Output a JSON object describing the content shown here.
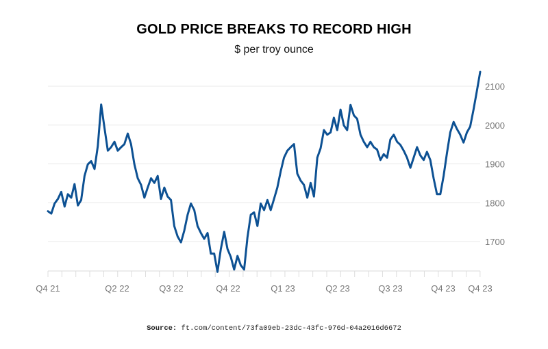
{
  "chart_data": {
    "type": "line",
    "title": "GOLD PRICE BREAKS TO RECORD HIGH",
    "subtitle": "$ per troy ounce",
    "xlabel": "",
    "ylabel": "",
    "x_tick_labels": [
      "Q4 21",
      "Q2 22",
      "Q3 22",
      "Q4 22",
      "Q1 23",
      "Q2 23",
      "Q3 23",
      "Q4 23",
      "Q4 23"
    ],
    "y_ticks": [
      1700,
      1800,
      1900,
      2000,
      2100
    ],
    "ylim": [
      1622,
      2140
    ],
    "grid": "horizontal",
    "legend": "none",
    "line_color": "#0d5193",
    "series": [
      {
        "values": [
          1778,
          1772,
          1798,
          1810,
          1828,
          1790,
          1822,
          1813,
          1848,
          1793,
          1807,
          1869,
          1899,
          1907,
          1887,
          1946,
          2053,
          1993,
          1934,
          1943,
          1957,
          1934,
          1943,
          1951,
          1978,
          1951,
          1899,
          1863,
          1846,
          1813,
          1839,
          1863,
          1851,
          1869,
          1810,
          1839,
          1816,
          1807,
          1740,
          1713,
          1698,
          1728,
          1769,
          1798,
          1781,
          1740,
          1722,
          1707,
          1722,
          1669,
          1669,
          1622,
          1681,
          1725,
          1681,
          1660,
          1628,
          1663,
          1639,
          1628,
          1710,
          1769,
          1775,
          1740,
          1798,
          1781,
          1807,
          1781,
          1810,
          1839,
          1881,
          1916,
          1934,
          1943,
          1951,
          1875,
          1857,
          1846,
          1813,
          1851,
          1816,
          1916,
          1940,
          1987,
          1975,
          1981,
          2019,
          1987,
          2040,
          1999,
          1987,
          2052,
          2025,
          2016,
          1975,
          1957,
          1943,
          1957,
          1943,
          1937,
          1910,
          1925,
          1916,
          1963,
          1975,
          1957,
          1949,
          1934,
          1916,
          1890,
          1916,
          1943,
          1922,
          1910,
          1931,
          1910,
          1863,
          1822,
          1822,
          1869,
          1928,
          1981,
          2008,
          1990,
          1975,
          1955,
          1981,
          1996,
          2040,
          2087,
          2137
        ]
      }
    ]
  },
  "source": {
    "label": "Source:",
    "text": "ft.com/content/73fa09eb-23dc-43fc-976d-04a2016d6672"
  }
}
